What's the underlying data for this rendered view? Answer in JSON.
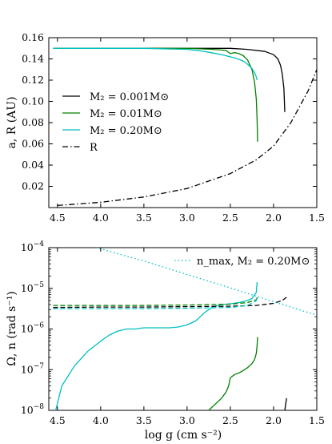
{
  "chart_data": [
    {
      "type": "line",
      "panel": "top",
      "ylabel": "a, R (AU)",
      "xlabel": "",
      "x_axis_reversed": true,
      "xlim": [
        4.6,
        1.5
      ],
      "ylim": [
        0.0,
        0.16
      ],
      "xticks": [
        "4.5",
        "4.0",
        "3.5",
        "3.0",
        "2.5",
        "2.0",
        "1.5"
      ],
      "xtick_values": [
        4.5,
        4.0,
        3.5,
        3.0,
        2.5,
        2.0,
        1.5
      ],
      "yticks": [
        "0.02",
        "0.04",
        "0.06",
        "0.08",
        "0.10",
        "0.12",
        "0.14",
        "0.16"
      ],
      "ytick_values": [
        0.02,
        0.04,
        0.06,
        0.08,
        0.1,
        0.12,
        0.14,
        0.16
      ],
      "grid": false,
      "legend_placement": "center-left",
      "series": [
        {
          "name": "M₂ = 0.001M⊙",
          "color": "#000000",
          "style": "solid",
          "x": [
            4.55,
            4.0,
            3.5,
            3.0,
            2.5,
            2.3,
            2.1,
            2.0,
            1.95,
            1.92,
            1.9,
            1.88,
            1.87
          ],
          "y": [
            0.15,
            0.15,
            0.15,
            0.15,
            0.15,
            0.149,
            0.147,
            0.144,
            0.14,
            0.134,
            0.126,
            0.112,
            0.09
          ]
        },
        {
          "name": "M₂ = 0.01M⊙",
          "color": "#008000",
          "style": "solid",
          "x": [
            4.55,
            4.0,
            3.5,
            3.0,
            2.7,
            2.55,
            2.5,
            2.45,
            2.4,
            2.35,
            2.3,
            2.25,
            2.22,
            2.2,
            2.19,
            2.185
          ],
          "y": [
            0.15,
            0.15,
            0.15,
            0.15,
            0.149,
            0.148,
            0.145,
            0.146,
            0.145,
            0.143,
            0.139,
            0.13,
            0.118,
            0.102,
            0.082,
            0.062
          ]
        },
        {
          "name": "M₂ = 0.20M⊙",
          "color": "#00c0c0",
          "style": "solid",
          "x": [
            4.55,
            4.0,
            3.5,
            3.0,
            2.8,
            2.6,
            2.45,
            2.35,
            2.3,
            2.25,
            2.22,
            2.2,
            2.19
          ],
          "y": [
            0.15,
            0.15,
            0.15,
            0.149,
            0.147,
            0.144,
            0.141,
            0.138,
            0.135,
            0.131,
            0.127,
            0.123,
            0.12
          ]
        },
        {
          "name": "R",
          "color": "#000000",
          "style": "dashdot",
          "x": [
            4.5,
            4.0,
            3.5,
            3.0,
            2.5,
            2.2,
            2.0,
            1.8,
            1.6,
            1.5
          ],
          "y": [
            0.002,
            0.005,
            0.01,
            0.018,
            0.032,
            0.045,
            0.058,
            0.08,
            0.11,
            0.13
          ]
        }
      ]
    },
    {
      "type": "line",
      "panel": "bottom",
      "ylabel": "Ω, n (rad s⁻¹)",
      "xlabel": "log g (cm s⁻²)",
      "x_axis_reversed": true,
      "y_log_scale": true,
      "xlim": [
        4.6,
        1.5
      ],
      "ylim": [
        1e-08,
        0.0001
      ],
      "xticks": [
        "4.5",
        "4.0",
        "3.5",
        "3.0",
        "2.5",
        "2.0",
        "1.5"
      ],
      "xtick_values": [
        4.5,
        4.0,
        3.5,
        3.0,
        2.5,
        2.0,
        1.5
      ],
      "ytick_exponents": [
        "−8",
        "−7",
        "−6",
        "−5",
        "−4"
      ],
      "ytick_values": [
        -8,
        -7,
        -6,
        -5,
        -4
      ],
      "ytick_base": "10",
      "grid": false,
      "legend_placement": "top-right",
      "legend_entry": "n_max, M₂ = 0.20M⊙",
      "series": [
        {
          "key": "omega_001",
          "color": "#000000",
          "style": "solid",
          "x": [
            1.87,
            1.86,
            1.85
          ],
          "y": [
            -8.0,
            -7.85,
            -7.7
          ]
        },
        {
          "key": "omega_01",
          "color": "#008000",
          "style": "solid",
          "x": [
            2.75,
            2.65,
            2.6,
            2.55,
            2.52,
            2.5,
            2.45,
            2.4,
            2.35,
            2.3,
            2.25,
            2.22,
            2.2,
            2.19,
            2.185
          ],
          "y": [
            -8.0,
            -7.8,
            -7.7,
            -7.55,
            -7.4,
            -7.2,
            -7.12,
            -7.08,
            -7.02,
            -6.95,
            -6.85,
            -6.75,
            -6.6,
            -6.4,
            -6.2
          ]
        },
        {
          "key": "omega_20",
          "color": "#00c0c0",
          "style": "solid",
          "x": [
            4.52,
            4.45,
            4.3,
            4.15,
            4.0,
            3.9,
            3.8,
            3.7,
            3.6,
            3.5,
            3.4,
            3.3,
            3.2,
            3.1,
            3.0,
            2.9,
            2.85,
            2.8,
            2.7,
            2.6,
            2.5,
            2.4,
            2.3,
            2.25,
            2.2,
            2.19
          ],
          "y": [
            -8.0,
            -7.4,
            -6.9,
            -6.55,
            -6.3,
            -6.15,
            -6.05,
            -6.0,
            -6.0,
            -5.97,
            -5.97,
            -5.97,
            -5.97,
            -5.95,
            -5.9,
            -5.8,
            -5.7,
            -5.6,
            -5.45,
            -5.4,
            -5.38,
            -5.35,
            -5.3,
            -5.25,
            -5.1,
            -4.85
          ]
        },
        {
          "key": "n_001",
          "color": "#000000",
          "style": "dashed",
          "x": [
            4.55,
            4.0,
            3.5,
            3.0,
            2.5,
            2.2,
            2.0,
            1.9,
            1.85
          ],
          "y": [
            -5.47,
            -5.46,
            -5.46,
            -5.45,
            -5.44,
            -5.42,
            -5.37,
            -5.3,
            -5.22
          ]
        },
        {
          "key": "n_01",
          "color": "#008000",
          "style": "dashed",
          "x": [
            4.55,
            4.0,
            3.5,
            3.0,
            2.5,
            2.3,
            2.2,
            2.185
          ],
          "y": [
            -5.42,
            -5.42,
            -5.42,
            -5.41,
            -5.39,
            -5.35,
            -5.28,
            -5.2
          ]
        },
        {
          "key": "n_20",
          "color": "#00c0c0",
          "style": "dashed",
          "x": [
            4.55,
            4.0,
            3.5,
            3.0,
            2.5,
            2.3,
            2.2,
            2.19
          ],
          "y": [
            -5.5,
            -5.5,
            -5.5,
            -5.49,
            -5.47,
            -5.42,
            -5.3,
            -5.2
          ]
        },
        {
          "key": "nmax_20",
          "color": "#00c0c0",
          "style": "dotted",
          "x": [
            4.05,
            3.5,
            3.0,
            2.5,
            2.0,
            1.5
          ],
          "y": [
            -4.0,
            -4.33,
            -4.66,
            -4.99,
            -5.33,
            -5.66
          ]
        }
      ]
    }
  ]
}
